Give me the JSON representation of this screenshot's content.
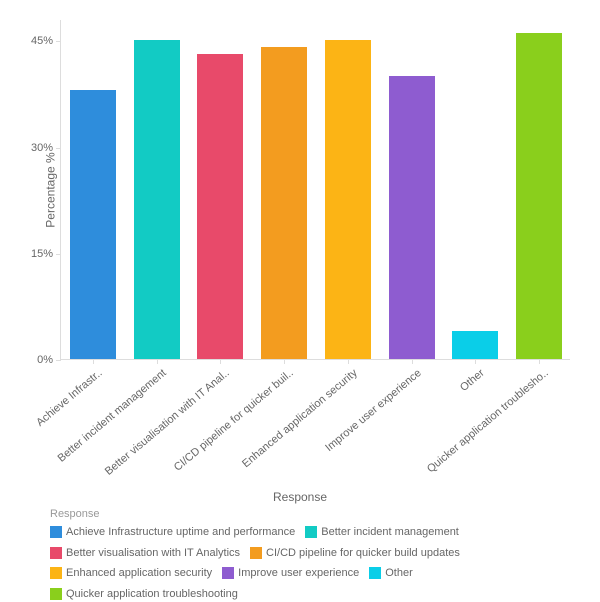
{
  "chart": {
    "type": "bar",
    "ylabel": "Percentage %",
    "xlabel": "Response",
    "ylim_max": 48,
    "yticks": [
      0,
      15,
      30,
      45
    ],
    "ytick_labels": [
      "0%",
      "15%",
      "30%",
      "45%"
    ],
    "background_color": "#ffffff",
    "axis_color": "#dddddd",
    "text_color": "#666666",
    "label_fontsize": 12,
    "tick_fontsize": 11,
    "bar_width_ratio": 0.72,
    "bars": [
      {
        "xlabel": "Achieve Infrastr..",
        "value": 38,
        "color": "#2e8ddc"
      },
      {
        "xlabel": "Better incident management",
        "value": 45,
        "color": "#12cbc4"
      },
      {
        "xlabel": "Better visualisation with IT Anal..",
        "value": 43,
        "color": "#e84a6a"
      },
      {
        "xlabel": "CI/CD pipeline for quicker buil..",
        "value": 44,
        "color": "#f39c1f"
      },
      {
        "xlabel": "Enhanced application security",
        "value": 45,
        "color": "#fcb415"
      },
      {
        "xlabel": "Improve user experience",
        "value": 40,
        "color": "#8e5cd0"
      },
      {
        "xlabel": "Other",
        "value": 4,
        "color": "#0acee8"
      },
      {
        "xlabel": "Quicker application troublesho..",
        "value": 46,
        "color": "#8acf1c"
      }
    ]
  },
  "legend": {
    "title": "Response",
    "items": [
      {
        "label": "Achieve Infrastructure uptime and performance",
        "color": "#2e8ddc"
      },
      {
        "label": "Better incident management",
        "color": "#12cbc4"
      },
      {
        "label": "Better visualisation with IT Analytics",
        "color": "#e84a6a"
      },
      {
        "label": "CI/CD pipeline for quicker build updates",
        "color": "#f39c1f"
      },
      {
        "label": "Enhanced application security",
        "color": "#fcb415"
      },
      {
        "label": "Improve user experience",
        "color": "#8e5cd0"
      },
      {
        "label": "Other",
        "color": "#0acee8"
      },
      {
        "label": "Quicker application troubleshooting",
        "color": "#8acf1c"
      }
    ]
  }
}
